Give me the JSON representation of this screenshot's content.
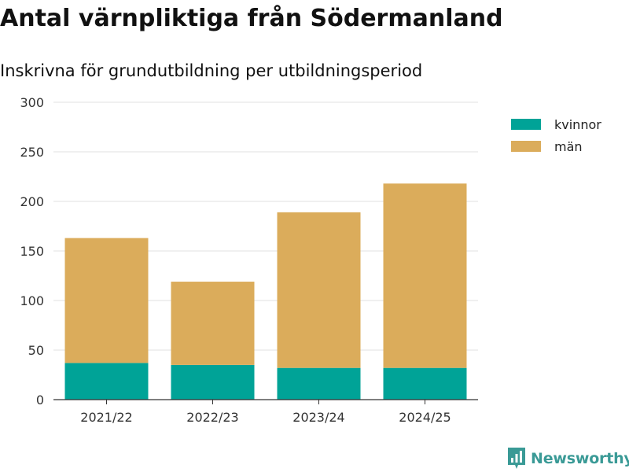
{
  "chart_data": {
    "type": "bar",
    "stacked": true,
    "title": "Antal värnpliktiga från Södermanland",
    "subtitle": "Inskrivna för grundutbildning per utbildningsperiod",
    "xlabel": "",
    "ylabel": "",
    "categories": [
      "2021/22",
      "2022/23",
      "2023/24",
      "2024/25"
    ],
    "series": [
      {
        "name": "kvinnor",
        "color": "#00a397",
        "values": [
          37,
          35,
          32,
          32
        ]
      },
      {
        "name": "män",
        "color": "#dbac5b",
        "values": [
          126,
          84,
          157,
          186
        ]
      }
    ],
    "ylim": [
      0,
      300
    ],
    "yticks": [
      0,
      50,
      100,
      150,
      200,
      250,
      300
    ],
    "grid": true,
    "legend_position": "top-right"
  },
  "brand": {
    "name": "Newsworthy",
    "color": "#3a9a96"
  }
}
